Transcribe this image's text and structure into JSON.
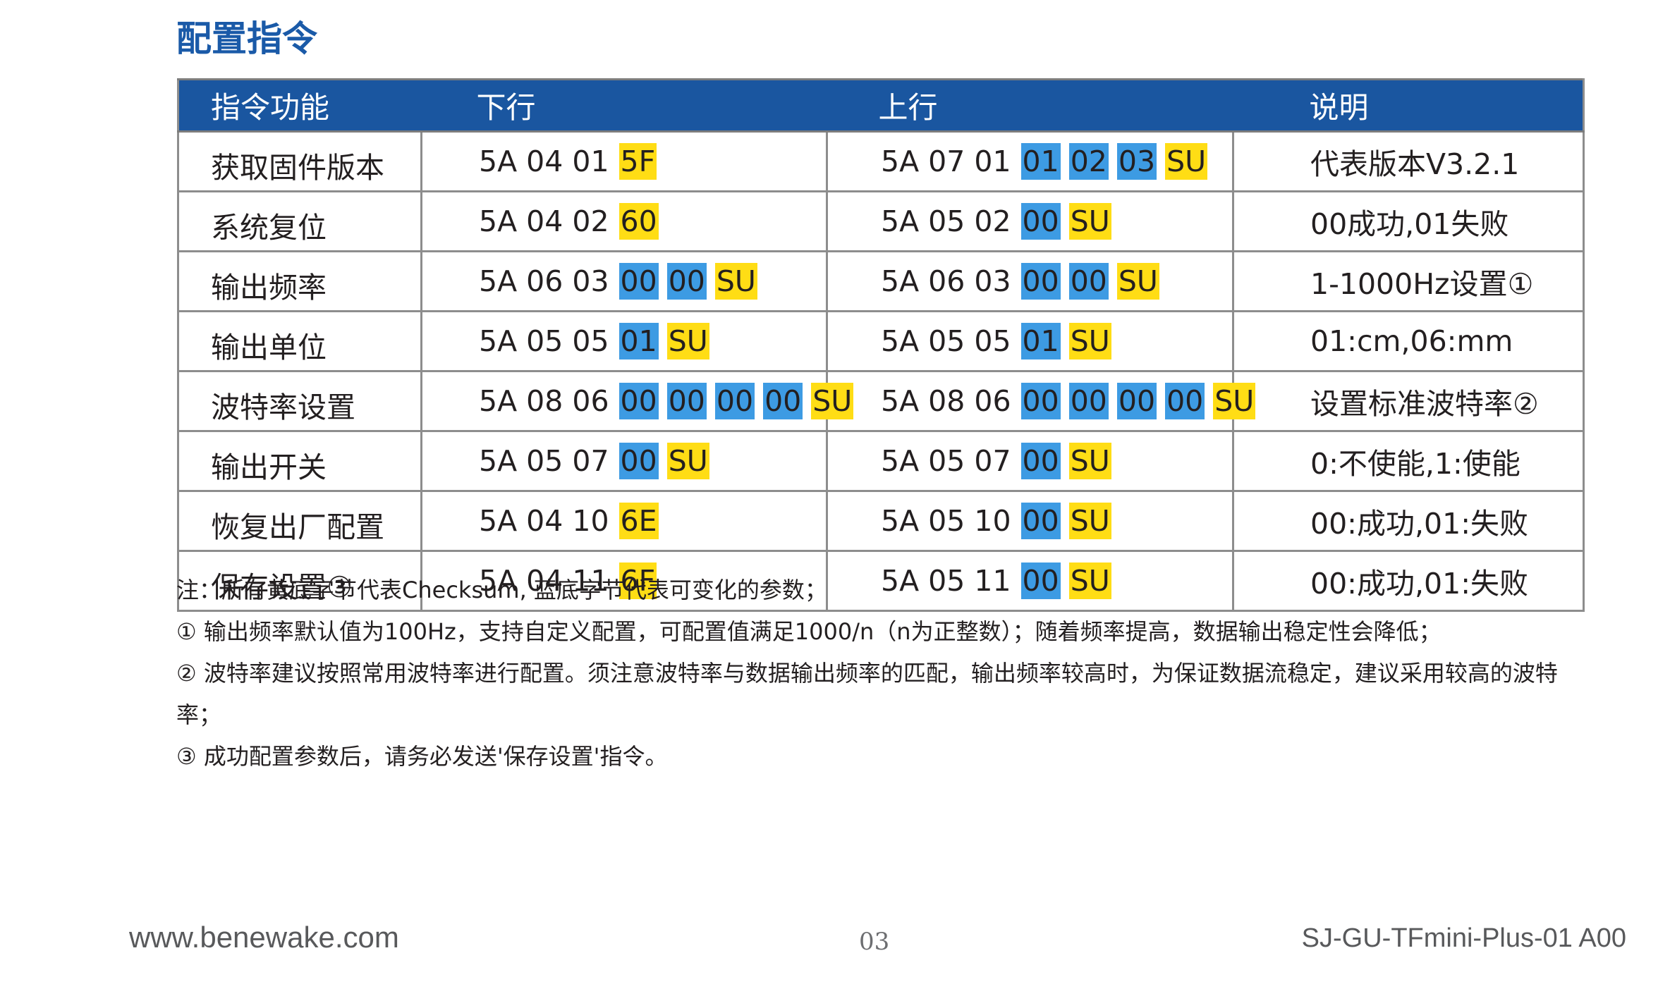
{
  "title": "配置指令",
  "table": {
    "headers": [
      "指令功能",
      "下行",
      "上行",
      "说明"
    ],
    "rows": [
      {
        "func": "获取固件版本",
        "down": [
          {
            "t": "5A 04 01",
            "c": ""
          },
          {
            "t": "5F",
            "c": "yellow"
          }
        ],
        "up": [
          {
            "t": "5A 07 01",
            "c": ""
          },
          {
            "t": "01",
            "c": "blue"
          },
          {
            "t": "02",
            "c": "blue"
          },
          {
            "t": "03",
            "c": "blue"
          },
          {
            "t": "SU",
            "c": "yellow"
          }
        ],
        "desc": "代表版本V3.2.1"
      },
      {
        "func": "系统复位",
        "down": [
          {
            "t": "5A 04 02",
            "c": ""
          },
          {
            "t": "60",
            "c": "yellow"
          }
        ],
        "up": [
          {
            "t": "5A 05 02",
            "c": ""
          },
          {
            "t": "00",
            "c": "blue"
          },
          {
            "t": "SU",
            "c": "yellow"
          }
        ],
        "desc": "00成功,01失败"
      },
      {
        "func": "输出频率",
        "down": [
          {
            "t": "5A 06 03",
            "c": ""
          },
          {
            "t": "00",
            "c": "blue"
          },
          {
            "t": "00",
            "c": "blue"
          },
          {
            "t": "SU",
            "c": "yellow"
          }
        ],
        "up": [
          {
            "t": "5A 06 03",
            "c": ""
          },
          {
            "t": "00",
            "c": "blue"
          },
          {
            "t": "00",
            "c": "blue"
          },
          {
            "t": "SU",
            "c": "yellow"
          }
        ],
        "desc": "1-1000Hz设置①"
      },
      {
        "func": "输出单位",
        "down": [
          {
            "t": "5A 05 05",
            "c": ""
          },
          {
            "t": "01",
            "c": "blue"
          },
          {
            "t": "SU",
            "c": "yellow"
          }
        ],
        "up": [
          {
            "t": "5A 05 05",
            "c": ""
          },
          {
            "t": "01",
            "c": "blue"
          },
          {
            "t": "SU",
            "c": "yellow"
          }
        ],
        "desc": "01:cm,06:mm"
      },
      {
        "func": "波特率设置",
        "down": [
          {
            "t": "5A 08 06",
            "c": ""
          },
          {
            "t": "00",
            "c": "blue"
          },
          {
            "t": "00",
            "c": "blue"
          },
          {
            "t": "00",
            "c": "blue"
          },
          {
            "t": "00",
            "c": "blue"
          },
          {
            "t": "SU",
            "c": "yellow"
          }
        ],
        "up": [
          {
            "t": "5A 08 06",
            "c": ""
          },
          {
            "t": "00",
            "c": "blue"
          },
          {
            "t": "00",
            "c": "blue"
          },
          {
            "t": "00",
            "c": "blue"
          },
          {
            "t": "00",
            "c": "blue"
          },
          {
            "t": "SU",
            "c": "yellow"
          }
        ],
        "desc": "设置标准波特率②"
      },
      {
        "func": "输出开关",
        "down": [
          {
            "t": "5A 05 07",
            "c": ""
          },
          {
            "t": "00",
            "c": "blue"
          },
          {
            "t": "SU",
            "c": "yellow"
          }
        ],
        "up": [
          {
            "t": "5A 05 07",
            "c": ""
          },
          {
            "t": "00",
            "c": "blue"
          },
          {
            "t": "SU",
            "c": "yellow"
          }
        ],
        "desc": "0:不使能,1:使能"
      },
      {
        "func": "恢复出厂配置",
        "down": [
          {
            "t": "5A 04 10",
            "c": ""
          },
          {
            "t": "6E",
            "c": "yellow"
          }
        ],
        "up": [
          {
            "t": "5A 05 10",
            "c": ""
          },
          {
            "t": "00",
            "c": "blue"
          },
          {
            "t": "SU",
            "c": "yellow"
          }
        ],
        "desc": "00:成功,01:失败"
      },
      {
        "func": "保存设置③",
        "down": [
          {
            "t": "5A 04 11",
            "c": ""
          },
          {
            "t": "6F",
            "c": "yellow"
          }
        ],
        "up": [
          {
            "t": "5A 05 11",
            "c": ""
          },
          {
            "t": "00",
            "c": "blue"
          },
          {
            "t": "SU",
            "c": "yellow"
          }
        ],
        "desc": "00:成功,01:失败"
      }
    ]
  },
  "notes": [
    "注：所有黄底字节代表Checksum, 蓝底字节代表可变化的参数；",
    "① 输出频率默认值为100Hz，支持自定义配置，可配置值满足1000/n（n为正整数）；随着频率提高，数据输出稳定性会降低；",
    "② 波特率建议按照常用波特率进行配置。须注意波特率与数据输出频率的匹配，输出频率较高时，为保证数据流稳定，建议采用较高的波特率；",
    "③ 成功配置参数后，请务必发送'保存设置'指令。"
  ],
  "footer": {
    "website": "www.benewake.com",
    "page_number": "03",
    "doc_id": "SJ-GU-TFmini-Plus-01  A00"
  },
  "colors": {
    "header_blue": "#1a56a0",
    "title_blue": "#1a5aa8",
    "param_blue": "#3d9be3",
    "checksum_yellow": "#ffdd15"
  }
}
